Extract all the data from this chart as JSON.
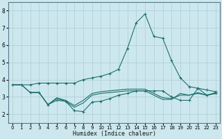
{
  "xlabel": "Humidex (Indice chaleur)",
  "bg_color": "#cce8ee",
  "grid_color": "#b0ccd4",
  "line_color": "#1e6e6a",
  "xlim": [
    -0.5,
    23.5
  ],
  "ylim": [
    1.5,
    8.5
  ],
  "xticks": [
    0,
    1,
    2,
    3,
    4,
    5,
    6,
    7,
    8,
    9,
    10,
    11,
    12,
    13,
    14,
    15,
    16,
    17,
    18,
    19,
    20,
    21,
    22,
    23
  ],
  "yticks": [
    2,
    3,
    4,
    5,
    6,
    7,
    8
  ],
  "series": [
    {
      "x": [
        0,
        1,
        2,
        3,
        4,
        5,
        6,
        7,
        8,
        9,
        10,
        11,
        12,
        13,
        14,
        15,
        16,
        17,
        18,
        19,
        20,
        21,
        22,
        23
      ],
      "y": [
        3.7,
        3.7,
        3.7,
        3.8,
        3.8,
        3.8,
        3.8,
        3.8,
        4.0,
        4.1,
        4.2,
        4.35,
        4.6,
        5.8,
        7.3,
        7.8,
        6.5,
        6.4,
        5.1,
        4.1,
        3.6,
        3.5,
        3.4,
        3.3
      ],
      "marker": true
    },
    {
      "x": [
        2,
        3,
        4,
        5,
        6,
        7,
        8,
        9,
        10,
        11,
        12,
        13,
        14,
        15,
        16,
        17,
        18,
        19,
        20,
        21,
        22,
        23
      ],
      "y": [
        3.25,
        3.25,
        2.55,
        2.8,
        2.75,
        2.2,
        2.15,
        2.7,
        2.75,
        2.9,
        3.1,
        3.2,
        3.35,
        3.35,
        3.35,
        3.35,
        3.0,
        2.8,
        2.8,
        3.5,
        3.1,
        3.2
      ],
      "marker": true
    },
    {
      "x": [
        0,
        1,
        2,
        3,
        4,
        5,
        6,
        7,
        8,
        9,
        10,
        11,
        12,
        13,
        14,
        15,
        16,
        17,
        18,
        19,
        20,
        21,
        22,
        23
      ],
      "y": [
        3.7,
        3.7,
        3.25,
        3.25,
        2.55,
        2.9,
        2.75,
        2.4,
        2.65,
        3.1,
        3.2,
        3.25,
        3.3,
        3.35,
        3.35,
        3.35,
        3.1,
        2.85,
        2.85,
        3.2,
        3.1,
        3.2,
        3.1,
        3.2
      ],
      "marker": false
    },
    {
      "x": [
        0,
        1,
        2,
        3,
        4,
        5,
        6,
        7,
        8,
        9,
        10,
        11,
        12,
        13,
        14,
        15,
        16,
        17,
        18,
        19,
        20,
        21,
        22,
        23
      ],
      "y": [
        3.7,
        3.7,
        3.25,
        3.25,
        2.55,
        2.95,
        2.8,
        2.5,
        2.8,
        3.2,
        3.3,
        3.35,
        3.4,
        3.45,
        3.45,
        3.45,
        3.2,
        2.95,
        2.9,
        3.1,
        3.1,
        3.25,
        3.1,
        3.25
      ],
      "marker": false
    }
  ]
}
